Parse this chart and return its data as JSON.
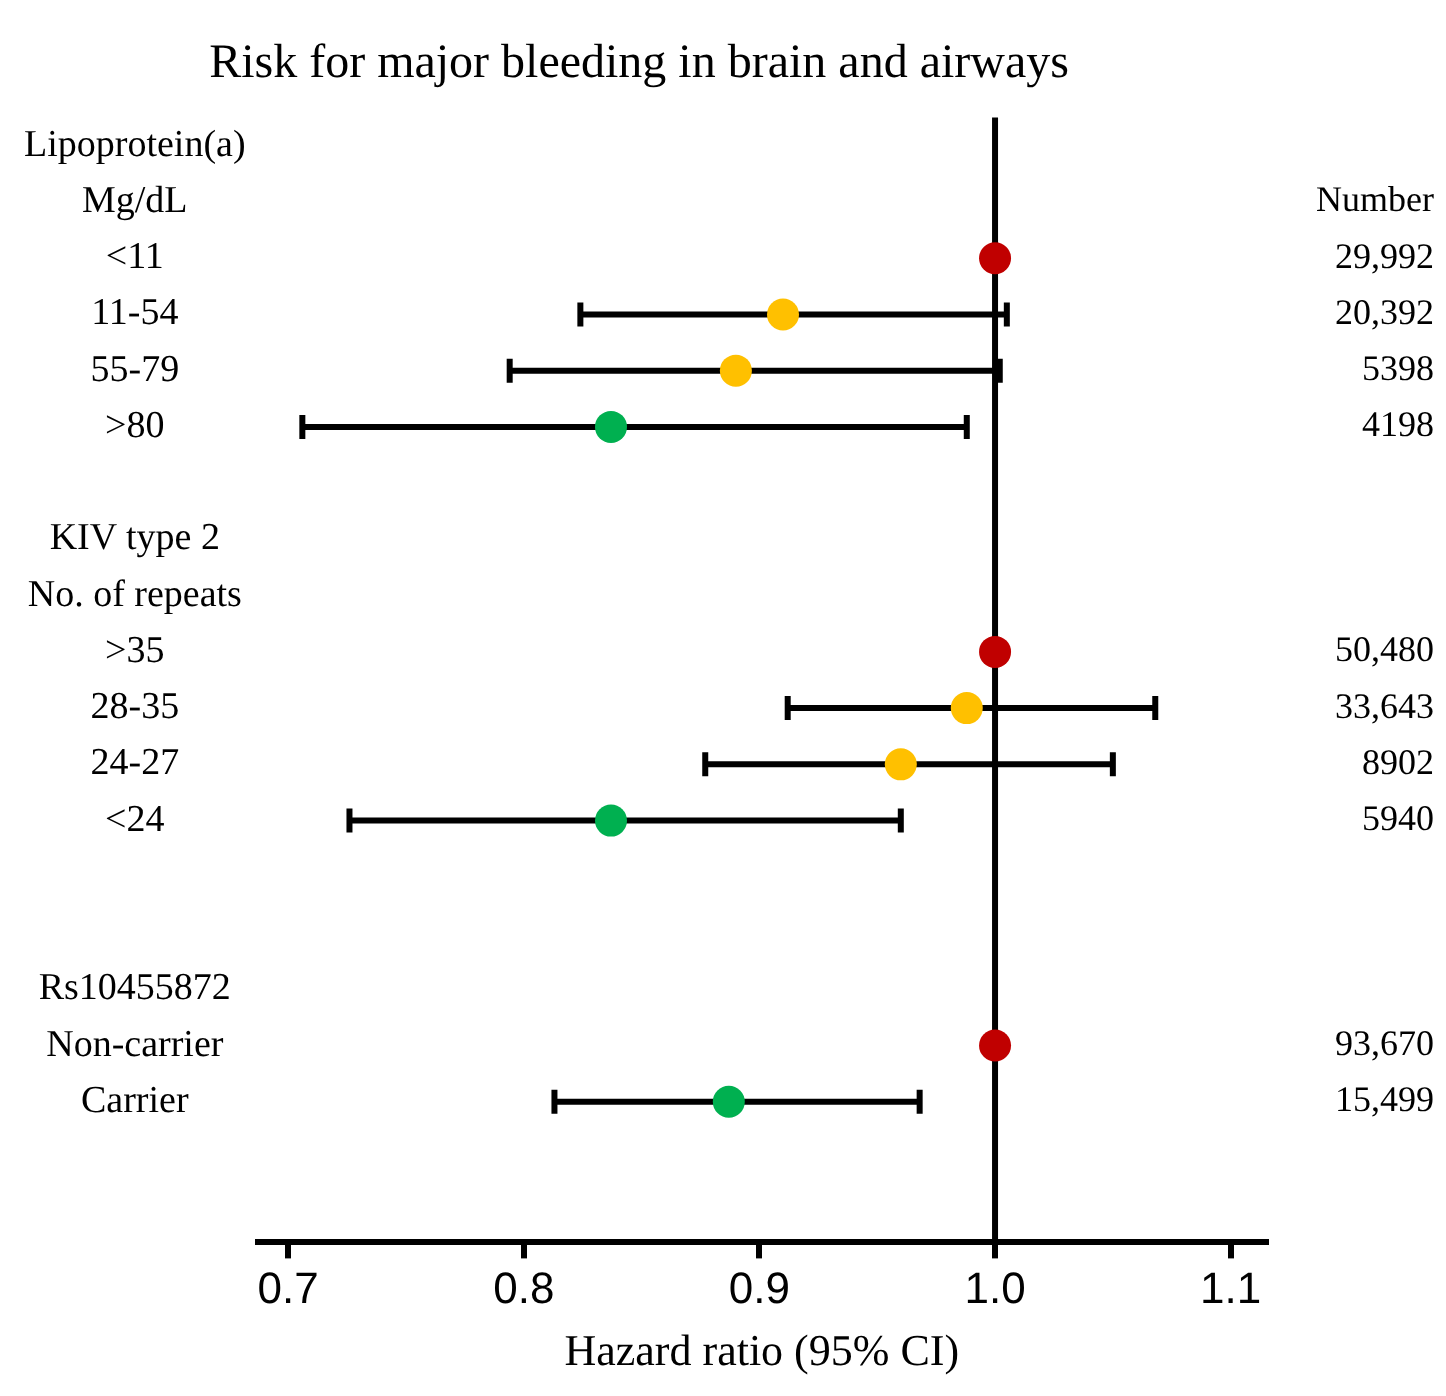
{
  "chart_data": {
    "type": "scatter",
    "orientation": "horizontal",
    "title": "Risk for major bleeding in brain and airways",
    "xlabel": "Hazard ratio (95% CI)",
    "categories": [
      "Lipoprotein(a)",
      "Mg/dL",
      "<11",
      "11-54",
      "55-79",
      ">80",
      null,
      "KIV type 2",
      "No. of repeats",
      ">35",
      "28-35",
      "24-27",
      "<24",
      null,
      null,
      "Rs10455872",
      "Non-carrier",
      "Carrier",
      null,
      null
    ],
    "values": [
      null,
      null,
      1.0,
      0.91,
      0.89,
      0.837,
      null,
      null,
      null,
      1.0,
      0.988,
      0.96,
      0.837,
      null,
      null,
      null,
      1.0,
      0.887,
      null,
      null
    ],
    "errors": [
      null,
      null,
      null,
      [
        0.824,
        1.005
      ],
      [
        0.794,
        1.002
      ],
      [
        0.706,
        0.988
      ],
      null,
      null,
      null,
      null,
      [
        0.912,
        1.068
      ],
      [
        0.877,
        1.05
      ],
      [
        0.726,
        0.96
      ],
      null,
      null,
      null,
      null,
      [
        0.813,
        0.968
      ],
      null,
      null
    ],
    "colors": [
      "#c00000",
      "#c00000",
      "#c00000",
      "#ffc000",
      "#ffc000",
      "#00b050",
      "#c00000",
      "#c00000",
      "#c00000",
      "#c00000",
      "#ffc000",
      "#ffc000",
      "#00b050",
      "#c00000",
      "#c00000",
      "#c00000",
      "#c00000",
      "#00b050",
      "#c00000",
      "#c00000"
    ],
    "xlim": [
      0.687,
      1.115
    ],
    "xticks": [
      0.7,
      0.8,
      0.9,
      {
        "value": 1.0,
        "label": "1.0"
      },
      1.1
    ],
    "ref_lines": [
      {
        "axis": "x",
        "value": 1.0,
        "color": "#000000"
      }
    ],
    "marker": "circle",
    "legend": false,
    "grid": false,
    "annotations": [
      "Number",
      "29,992",
      "20,392",
      "5398",
      "4198",
      "50,480",
      "33,643",
      "8902",
      "5940",
      "93,670",
      "15,499"
    ]
  }
}
